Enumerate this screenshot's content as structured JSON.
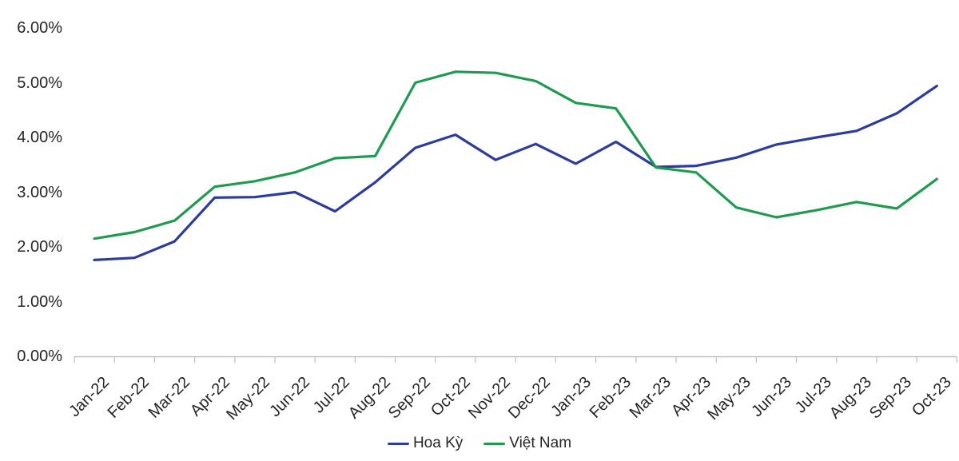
{
  "chart_data": {
    "type": "line",
    "title": "",
    "xlabel": "",
    "ylabel": "",
    "unit": "percent",
    "categories": [
      "Jan-22",
      "Feb-22",
      "Mar-22",
      "Apr-22",
      "May-22",
      "Jun-22",
      "Jul-22",
      "Aug-22",
      "Sep-22",
      "Oct-22",
      "Nov-22",
      "Dec-22",
      "Jan-23",
      "Feb-23",
      "Mar-23",
      "Apr-23",
      "May-23",
      "Jun-23",
      "Jul-23",
      "Aug-23",
      "Sep-23",
      "Oct-23"
    ],
    "series": [
      {
        "name": "Hoa Kỳ",
        "color": "#2b3c9c",
        "values": [
          1.76,
          1.8,
          2.1,
          2.9,
          2.91,
          3.0,
          2.65,
          3.18,
          3.81,
          4.05,
          3.59,
          3.88,
          3.52,
          3.92,
          3.46,
          3.48,
          3.63,
          3.87,
          4.0,
          4.12,
          4.44,
          4.94
        ]
      },
      {
        "name": "Việt Nam",
        "color": "#1f9b4f",
        "values": [
          2.15,
          2.27,
          2.48,
          3.1,
          3.2,
          3.36,
          3.62,
          3.66,
          5.0,
          5.2,
          5.18,
          5.03,
          4.63,
          4.53,
          3.45,
          3.36,
          2.72,
          2.54,
          2.67,
          2.82,
          2.7,
          3.24
        ]
      }
    ],
    "y_axis": {
      "min": 0,
      "max": 6,
      "tick_step": 1,
      "tick_labels": [
        "0.00%",
        "1.00%",
        "2.00%",
        "3.00%",
        "4.00%",
        "5.00%",
        "6.00%"
      ]
    },
    "grid": false,
    "legend_position": "bottom"
  },
  "colors": {
    "axis": "#bfbfbf",
    "text": "#262626",
    "background": "#ffffff"
  }
}
